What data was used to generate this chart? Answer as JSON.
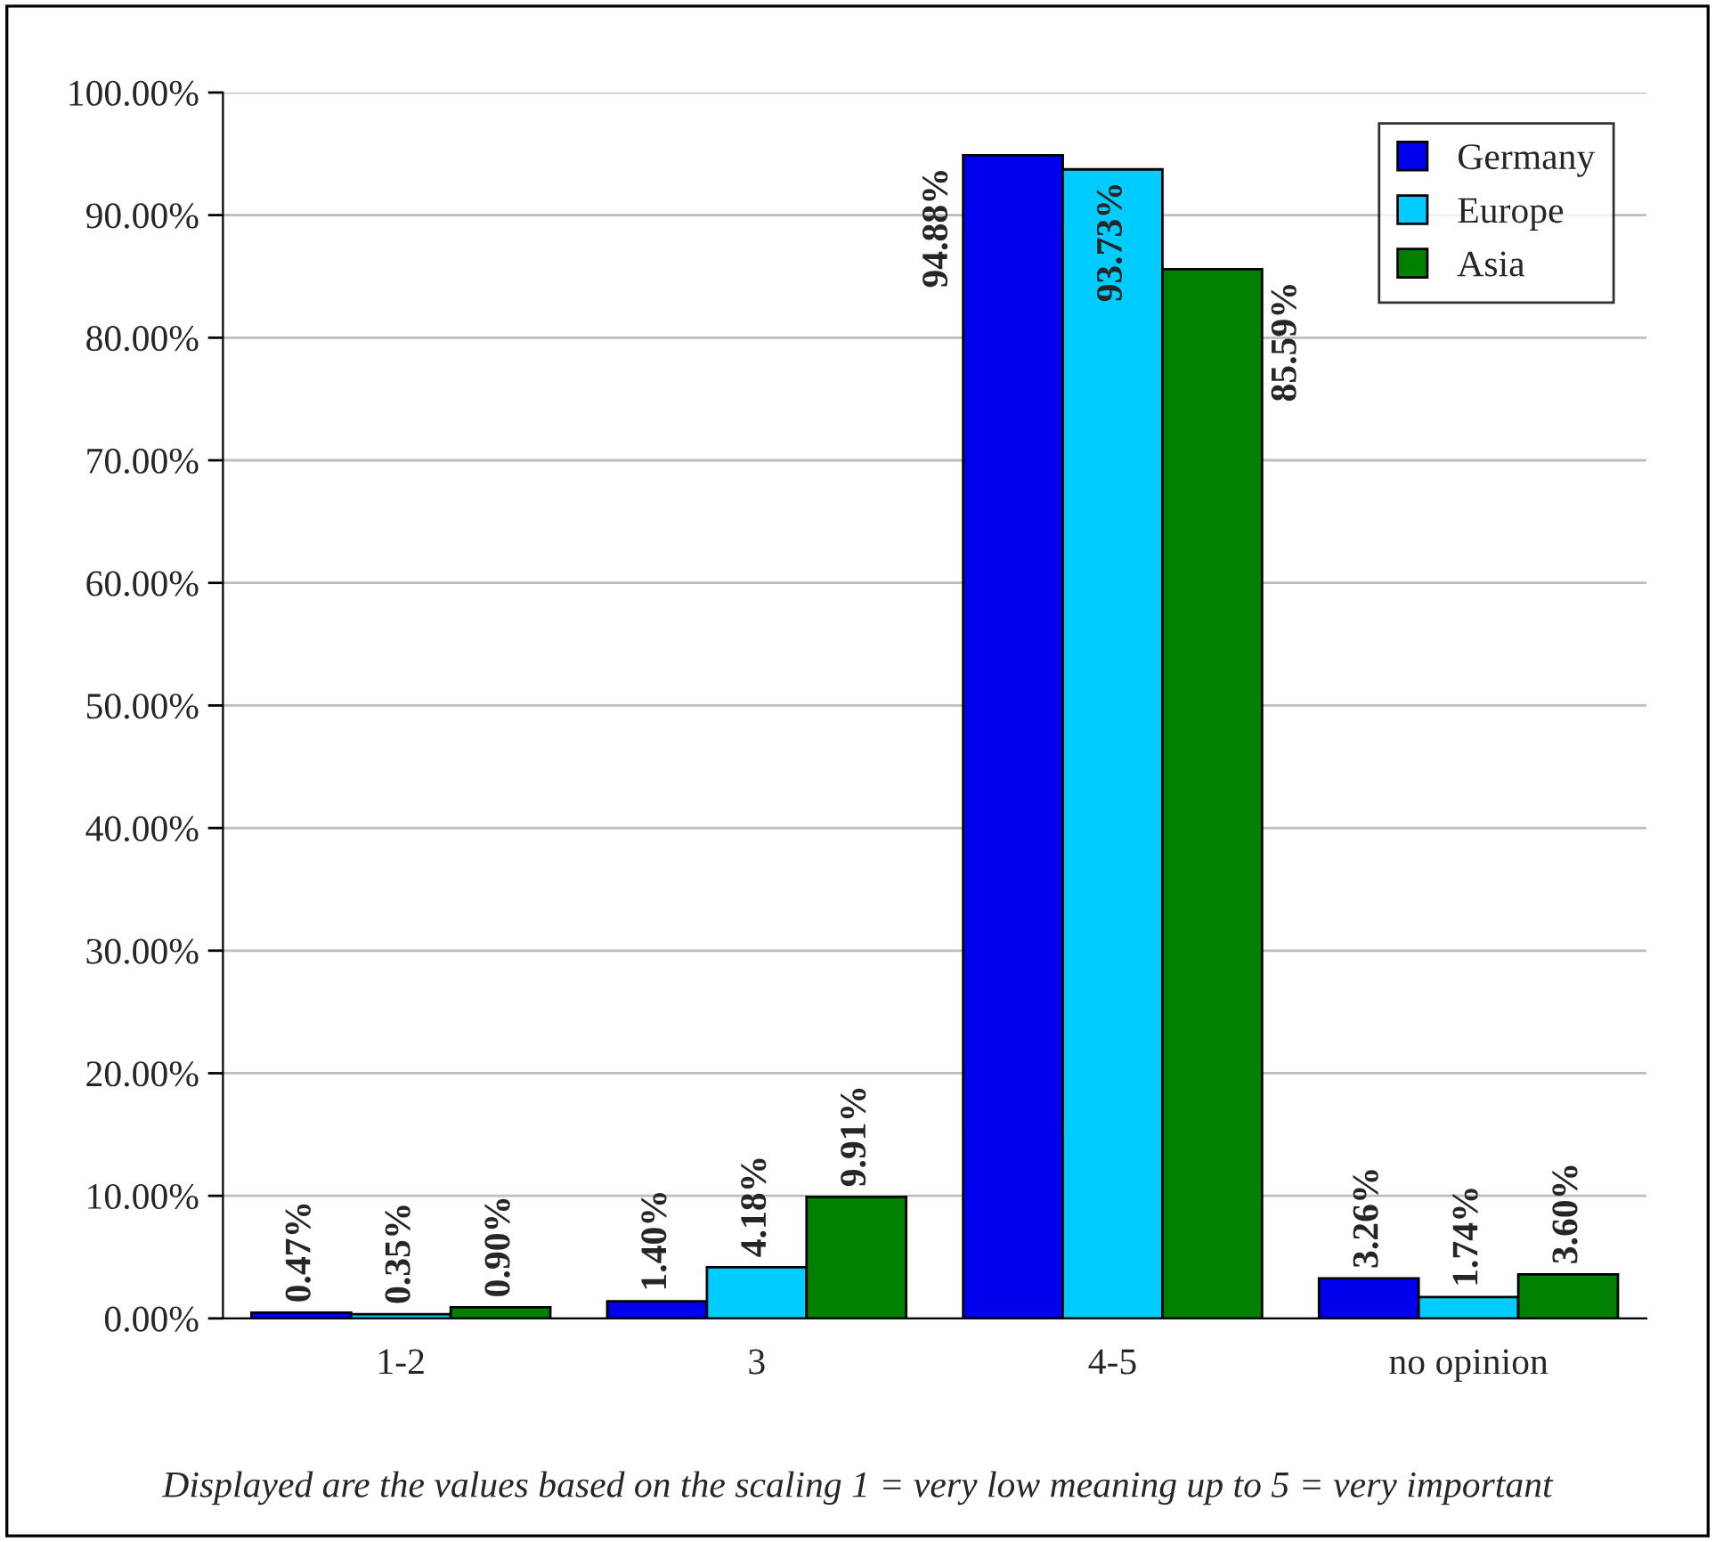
{
  "chart_data": {
    "type": "bar",
    "categories": [
      "1-2",
      "3",
      "4-5",
      "no opinion"
    ],
    "series": [
      {
        "name": "Germany",
        "color": "#0000ee",
        "values": [
          0.47,
          1.4,
          94.88,
          3.26
        ],
        "value_labels": [
          "0.47%",
          "1.40%",
          "94.88%",
          "3.26%"
        ]
      },
      {
        "name": "Europe",
        "color": "#00ccff",
        "values": [
          0.35,
          4.18,
          93.73,
          1.74
        ],
        "value_labels": [
          "0.35%",
          "4.18%",
          "93.73%",
          "1.74%"
        ]
      },
      {
        "name": "Asia",
        "color": "#008000",
        "values": [
          0.9,
          9.91,
          85.59,
          3.6
        ],
        "value_labels": [
          "0.90%",
          "9.91%",
          "85.59%",
          "3.60%"
        ]
      }
    ],
    "ylim": [
      0,
      100
    ],
    "yticks": [
      {
        "value": 0,
        "label": "0.00%"
      },
      {
        "value": 10,
        "label": "10.00%"
      },
      {
        "value": 20,
        "label": "20.00%"
      },
      {
        "value": 30,
        "label": "30.00%"
      },
      {
        "value": 40,
        "label": "40.00%"
      },
      {
        "value": 50,
        "label": "50.00%"
      },
      {
        "value": 60,
        "label": "60.00%"
      },
      {
        "value": 70,
        "label": "70.00%"
      },
      {
        "value": 80,
        "label": "80.00%"
      },
      {
        "value": 90,
        "label": "90.00%"
      },
      {
        "value": 100,
        "label": "100.00%"
      }
    ],
    "grid": "y",
    "legend": "top right",
    "annotations": [
      "Displayed are the values based on the scaling 1 = very low meaning up to 5 = very important"
    ]
  }
}
